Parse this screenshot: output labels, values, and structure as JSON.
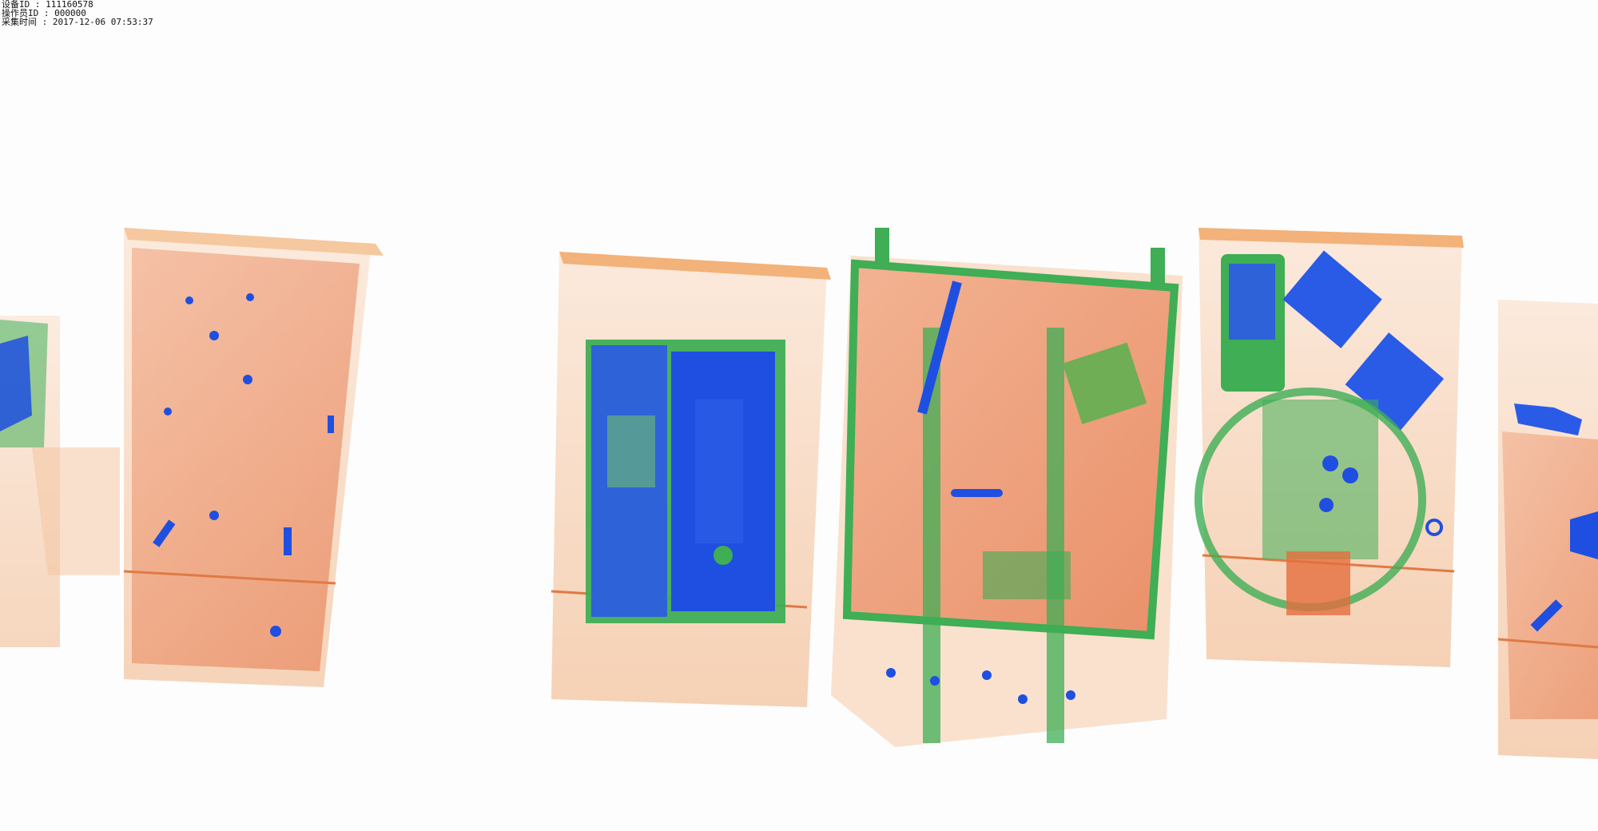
{
  "overlay": {
    "device_id": "设备ID : 111160578",
    "operator_id": "操作员ID : 000000",
    "capture_time": "采集时间 : 2017-12-06 07:53:37"
  },
  "colors": {
    "background": "#fdfdfd",
    "organic": "#e8825a",
    "mixed": "#3fae55",
    "metal": "#1f4fe0",
    "bin_edge": "#f2b27a"
  }
}
